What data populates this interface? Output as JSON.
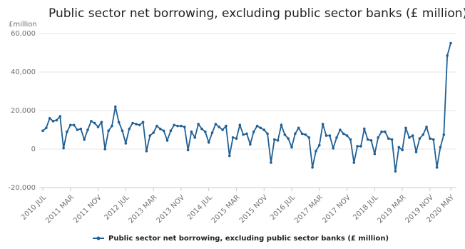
{
  "chart_data": {
    "type": "line",
    "title": "Public sector net borrowing, excluding public sector banks (£ million)",
    "y_label": "£million",
    "categories": [
      "2010 JUL",
      null,
      null,
      null,
      null,
      null,
      null,
      null,
      "2011 MAR",
      null,
      null,
      null,
      null,
      null,
      null,
      null,
      "2011 NOV",
      null,
      null,
      null,
      null,
      null,
      null,
      null,
      "2012 JUL",
      null,
      null,
      null,
      null,
      null,
      null,
      null,
      "2013 MAR",
      null,
      null,
      null,
      null,
      null,
      null,
      null,
      "2013 NOV",
      null,
      null,
      null,
      null,
      null,
      null,
      null,
      "2014 JUL",
      null,
      null,
      null,
      null,
      null,
      null,
      null,
      "2015 MAR",
      null,
      null,
      null,
      null,
      null,
      null,
      null,
      "2015 NOV",
      null,
      null,
      null,
      null,
      null,
      null,
      null,
      "2016 JUL",
      null,
      null,
      null,
      null,
      null,
      null,
      null,
      "2017 MAR",
      null,
      null,
      null,
      null,
      null,
      null,
      null,
      "2017 NOV",
      null,
      null,
      null,
      null,
      null,
      null,
      null,
      "2018 JUL",
      null,
      null,
      null,
      null,
      null,
      null,
      null,
      "2019 MAR",
      null,
      null,
      null,
      null,
      null,
      null,
      null,
      "2019 NOV",
      null,
      null,
      null,
      null,
      null,
      "2020 MAY"
    ],
    "series": [
      {
        "name": "Public sector net borrowing, excluding public sector banks (£ million)",
        "color": "#206095",
        "values": [
          9500,
          11000,
          16000,
          14500,
          15000,
          17000,
          500,
          9000,
          12500,
          12500,
          10000,
          10500,
          5000,
          10000,
          14500,
          13500,
          11500,
          14000,
          0,
          9500,
          12000,
          22000,
          14000,
          9500,
          3000,
          10500,
          13500,
          13000,
          12500,
          14000,
          -1000,
          7000,
          8500,
          12000,
          10500,
          9500,
          4500,
          9500,
          12500,
          12000,
          12000,
          11500,
          -500,
          9000,
          6000,
          13000,
          10500,
          9000,
          3500,
          8500,
          13000,
          11500,
          10000,
          12000,
          -3500,
          6000,
          5500,
          12500,
          7500,
          8000,
          2500,
          9000,
          12000,
          11000,
          10000,
          8000,
          -7000,
          5000,
          4500,
          12500,
          7500,
          5500,
          1000,
          8000,
          11000,
          8000,
          7500,
          6000,
          -9500,
          -1000,
          2000,
          13000,
          7000,
          7000,
          500,
          6000,
          10000,
          8000,
          7000,
          5000,
          -7000,
          1500,
          1500,
          10500,
          5000,
          4500,
          -2500,
          6000,
          9000,
          9000,
          5500,
          5000,
          -11500,
          1000,
          -500,
          11000,
          6000,
          7000,
          -1500,
          5500,
          7500,
          11500,
          5500,
          5000,
          -9500,
          1000,
          7500,
          48500,
          55000
        ]
      }
    ],
    "ylim": [
      -20000,
      60000
    ],
    "yticks": [
      {
        "value": -20000,
        "label": "-20,000"
      },
      0,
      {
        "value": 20000,
        "label": "20,000"
      },
      {
        "value": 40000,
        "label": "40,000"
      },
      {
        "value": 60000,
        "label": "60,000"
      }
    ],
    "grid": true
  }
}
